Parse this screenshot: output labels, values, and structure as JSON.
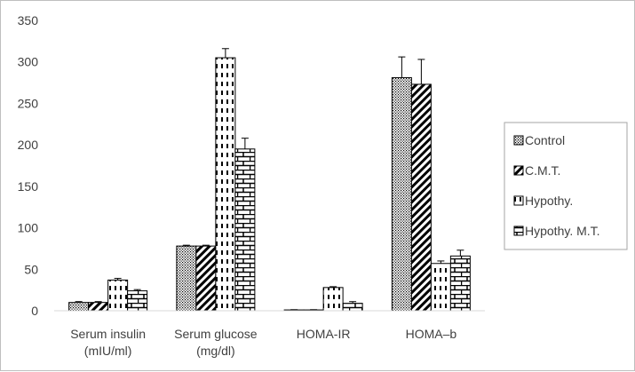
{
  "chart_data": {
    "type": "bar",
    "title": "",
    "xlabel": "",
    "ylabel": "",
    "ylim": [
      0,
      350
    ],
    "yticks": [
      0,
      50,
      100,
      150,
      200,
      250,
      300,
      350
    ],
    "grid": false,
    "legend_position": "right",
    "categories": [
      [
        "Serum insulin",
        "(mIU/ml)"
      ],
      [
        "Serum glucose",
        "(mg/dl)"
      ],
      [
        "HOMA-IR",
        ""
      ],
      [
        "HOMA–b",
        ""
      ]
    ],
    "series": [
      {
        "name": "Control",
        "pattern": "dots",
        "values": [
          10,
          78,
          1,
          281
        ],
        "errors": [
          1,
          1,
          0.3,
          25
        ]
      },
      {
        "name": "C.M.T.",
        "pattern": "diagonal",
        "values": [
          10,
          78,
          1,
          273
        ],
        "errors": [
          1,
          1,
          0.3,
          30
        ]
      },
      {
        "name": "Hypothy.",
        "pattern": "dashes",
        "values": [
          37,
          305,
          28,
          57
        ],
        "errors": [
          2,
          11,
          1,
          3
        ]
      },
      {
        "name": "Hypothy. M.T.",
        "pattern": "brick",
        "values": [
          24,
          195,
          9,
          66
        ],
        "errors": [
          1.5,
          13,
          2,
          7
        ]
      }
    ]
  }
}
